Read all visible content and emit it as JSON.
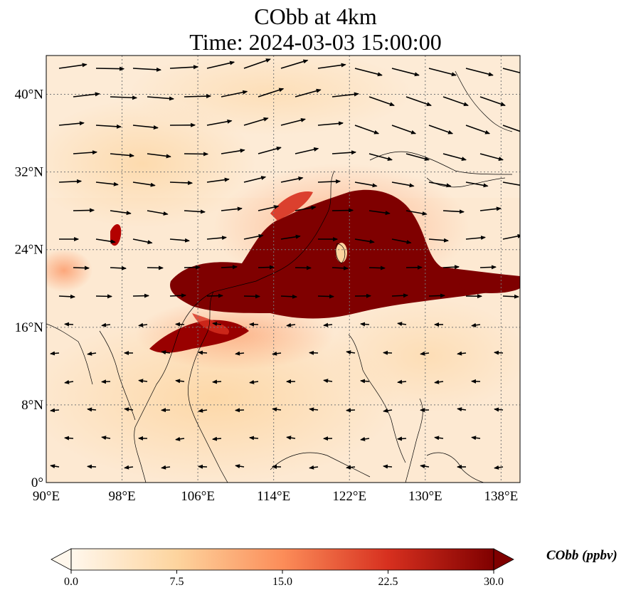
{
  "title": {
    "line1": "CObb at 4km",
    "line2": "Time: 2024-03-03 15:00:00"
  },
  "map": {
    "lon_range": [
      90,
      140
    ],
    "lat_range": [
      0,
      44
    ],
    "gridlines": true,
    "coastlines": true,
    "quiver": true,
    "xticks": [
      {
        "value": 90,
        "label": "90°E"
      },
      {
        "value": 98,
        "label": "98°E"
      },
      {
        "value": 106,
        "label": "106°E"
      },
      {
        "value": 114,
        "label": "114°E"
      },
      {
        "value": 122,
        "label": "122°E"
      },
      {
        "value": 130,
        "label": "130°E"
      },
      {
        "value": 138,
        "label": "138°E"
      }
    ],
    "yticks": [
      {
        "value": 0,
        "label": "0°"
      },
      {
        "value": 8,
        "label": "8°N"
      },
      {
        "value": 16,
        "label": "16°N"
      },
      {
        "value": 24,
        "label": "24°N"
      },
      {
        "value": 32,
        "label": "32°N"
      },
      {
        "value": 40,
        "label": "40°N"
      }
    ]
  },
  "colorbar": {
    "label": "CObb (ppbv)",
    "cmap": "OrRd",
    "extend": "both",
    "ticks": [
      "0.0",
      "7.5",
      "15.0",
      "22.5",
      "30.0"
    ],
    "range": [
      0,
      30
    ],
    "colors": [
      "#fff7ec",
      "#fdd49e",
      "#fc8d59",
      "#d7301f",
      "#7f0000"
    ]
  }
}
